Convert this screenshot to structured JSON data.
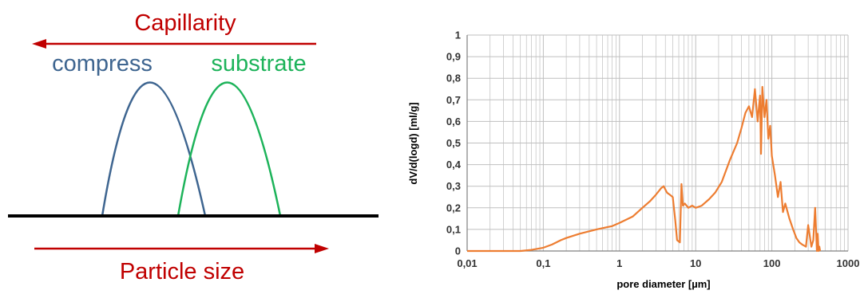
{
  "colors": {
    "red": "#C00000",
    "blue": "#3E6590",
    "green": "#1DB35A",
    "orange": "#ED7D31",
    "black": "#000000",
    "grid": "#BFBFBF",
    "text": "#333333"
  },
  "schematic": {
    "capillarity_label": "Capillarity",
    "compress_label": "compress",
    "substrate_label": "substrate",
    "particle_size_label": "Particle size"
  },
  "chart_data": {
    "type": "line",
    "xlabel": "pore diameter [µm]",
    "ylabel": "dV/d(logd) [ml/g]",
    "x_scale": "log",
    "xlim": [
      0.01,
      1000
    ],
    "ylim": [
      0,
      1
    ],
    "grid": true,
    "x_ticks": [
      0.01,
      0.1,
      1,
      10,
      100,
      1000
    ],
    "x_tick_labels": [
      "0,01",
      "0,1",
      "1",
      "10",
      "100",
      "1000"
    ],
    "y_ticks": [
      0,
      0.1,
      0.2,
      0.3,
      0.4,
      0.5,
      0.6,
      0.7,
      0.8,
      0.9,
      1
    ],
    "y_tick_labels": [
      "0",
      "0,1",
      "0,2",
      "0,3",
      "0,4",
      "0,5",
      "0,6",
      "0,7",
      "0,8",
      "0,9",
      "1"
    ],
    "series": [
      {
        "color": "#ED7D31",
        "x": [
          0.01,
          0.05,
          0.07,
          0.1,
          0.13,
          0.17,
          0.2,
          0.3,
          0.5,
          0.8,
          1,
          1.5,
          2,
          2.5,
          3,
          3.5,
          3.8,
          4.2,
          4.6,
          5,
          5.4,
          5.7,
          6.2,
          6.5,
          6.8,
          7.2,
          8,
          9,
          10,
          12,
          15,
          18,
          22,
          28,
          35,
          40,
          45,
          50,
          55,
          60,
          65,
          70,
          72,
          75,
          80,
          85,
          90,
          95,
          100,
          110,
          120,
          130,
          140,
          150,
          170,
          190,
          210,
          230,
          250,
          280,
          300,
          330,
          350,
          370,
          390,
          400,
          410,
          420,
          430
        ],
        "y": [
          0,
          0,
          0.005,
          0.015,
          0.03,
          0.05,
          0.06,
          0.08,
          0.1,
          0.115,
          0.13,
          0.16,
          0.2,
          0.23,
          0.26,
          0.29,
          0.3,
          0.27,
          0.26,
          0.25,
          0.14,
          0.05,
          0.04,
          0.31,
          0.21,
          0.22,
          0.2,
          0.21,
          0.2,
          0.21,
          0.24,
          0.27,
          0.32,
          0.42,
          0.5,
          0.57,
          0.64,
          0.67,
          0.62,
          0.75,
          0.6,
          0.72,
          0.45,
          0.76,
          0.62,
          0.7,
          0.52,
          0.58,
          0.44,
          0.35,
          0.25,
          0.32,
          0.18,
          0.22,
          0.15,
          0.1,
          0.06,
          0.04,
          0.03,
          0.02,
          0.12,
          0.02,
          0.05,
          0.2,
          0.0,
          0.08,
          0.0,
          0.02,
          0.0
        ]
      }
    ]
  }
}
